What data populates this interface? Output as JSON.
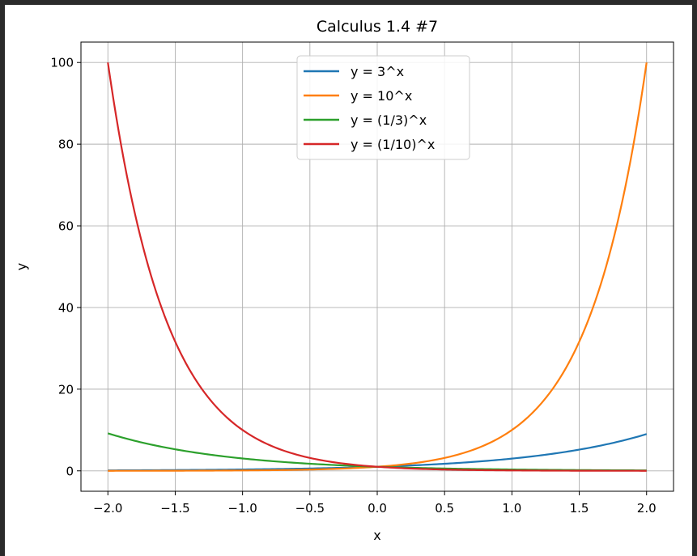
{
  "chart_data": {
    "type": "line",
    "title": "Calculus 1.4 #7",
    "xlabel": "x",
    "ylabel": "y",
    "xlim": [
      -2.2,
      2.2
    ],
    "ylim": [
      -5,
      105
    ],
    "xticks": [
      -2.0,
      -1.5,
      -1.0,
      -0.5,
      0.0,
      0.5,
      1.0,
      1.5,
      2.0
    ],
    "xtick_labels": [
      "−2.0",
      "−1.5",
      "−1.0",
      "−0.5",
      "0.0",
      "0.5",
      "1.0",
      "1.5",
      "2.0"
    ],
    "yticks": [
      0,
      20,
      40,
      60,
      80,
      100
    ],
    "ytick_labels": [
      "0",
      "20",
      "40",
      "60",
      "80",
      "100"
    ],
    "grid": true,
    "legend_position": "upper center",
    "x": [
      -2.0,
      -1.75,
      -1.5,
      -1.25,
      -1.0,
      -0.75,
      -0.5,
      -0.25,
      0.0,
      0.25,
      0.5,
      0.75,
      1.0,
      1.25,
      1.5,
      1.75,
      2.0
    ],
    "series": [
      {
        "name": "y = 3^x",
        "color": "#1f77b4",
        "values": [
          0.11,
          0.15,
          0.19,
          0.25,
          0.33,
          0.44,
          0.58,
          0.76,
          1.0,
          1.32,
          1.73,
          2.28,
          3.0,
          3.95,
          5.2,
          6.84,
          9.0
        ]
      },
      {
        "name": "y = 10^x",
        "color": "#ff7f0e",
        "values": [
          0.01,
          0.02,
          0.03,
          0.06,
          0.1,
          0.18,
          0.32,
          0.56,
          1.0,
          1.78,
          3.16,
          5.62,
          10.0,
          17.78,
          31.62,
          56.23,
          100.0
        ]
      },
      {
        "name": "y = (1/3)^x",
        "color": "#2ca02c",
        "values": [
          9.0,
          6.84,
          5.2,
          3.95,
          3.0,
          2.28,
          1.73,
          1.32,
          1.0,
          0.76,
          0.58,
          0.44,
          0.33,
          0.25,
          0.19,
          0.15,
          0.11
        ]
      },
      {
        "name": "y = (1/10)^x",
        "color": "#d62728",
        "values": [
          100.0,
          56.23,
          31.62,
          17.78,
          10.0,
          5.62,
          3.16,
          1.78,
          1.0,
          0.56,
          0.32,
          0.18,
          0.1,
          0.06,
          0.03,
          0.02,
          0.01
        ]
      }
    ]
  }
}
